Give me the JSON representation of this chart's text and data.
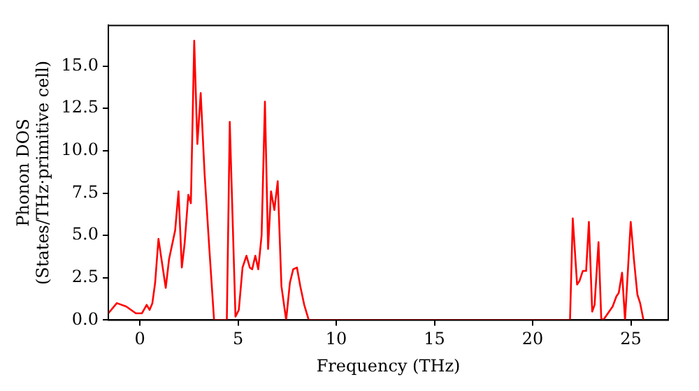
{
  "chart_data": {
    "type": "line",
    "xlabel": "Frequency (THz)",
    "ylabel": "Phonon DOS\n(States/THz·primitive cell)",
    "x": [
      -1.6,
      -1.17,
      -0.69,
      -0.2,
      0.11,
      0.35,
      0.5,
      0.64,
      0.78,
      0.95,
      1.32,
      1.49,
      1.8,
      1.97,
      2.14,
      2.28,
      2.47,
      2.6,
      2.77,
      2.93,
      3.1,
      3.3,
      3.54,
      3.78,
      4.43,
      4.58,
      4.87,
      5.04,
      5.23,
      5.43,
      5.6,
      5.72,
      5.88,
      6.03,
      6.2,
      6.37,
      6.53,
      6.68,
      6.85,
      7.02,
      7.21,
      7.45,
      7.64,
      7.81,
      8.0,
      8.17,
      8.37,
      8.6,
      21.9,
      22.04,
      22.26,
      22.38,
      22.55,
      22.72,
      22.86,
      23.03,
      23.15,
      23.35,
      23.49,
      23.59,
      23.83,
      24.07,
      24.26,
      24.38,
      24.55,
      24.7,
      24.99,
      25.16,
      25.33,
      25.47,
      25.64
    ],
    "series": [
      {
        "color": "#ff0000",
        "values": [
          0.4,
          1.0,
          0.8,
          0.4,
          0.4,
          0.9,
          0.6,
          1.0,
          2.2,
          4.8,
          1.9,
          3.6,
          5.3,
          7.6,
          3.1,
          4.5,
          7.4,
          6.9,
          16.5,
          10.4,
          13.4,
          8.6,
          4.2,
          0,
          0,
          11.7,
          0.2,
          0.6,
          3.1,
          3.8,
          3.1,
          3.0,
          3.8,
          3.0,
          5.0,
          12.9,
          4.2,
          7.6,
          6.5,
          8.2,
          2.0,
          0,
          2.2,
          3.0,
          3.1,
          2.0,
          0.9,
          0,
          0,
          6.0,
          2.1,
          2.3,
          2.9,
          2.9,
          5.8,
          0.5,
          0.9,
          4.6,
          0.1,
          0,
          0.4,
          0.8,
          1.4,
          1.6,
          2.8,
          0,
          5.8,
          3.5,
          1.5,
          1.0,
          0
        ]
      }
    ],
    "xlim": [
      -1.6,
      26.9
    ],
    "ylim": [
      0,
      17.4
    ],
    "xticks": [
      0,
      5,
      10,
      15,
      20,
      25
    ],
    "yticks": [
      {
        "value": 0,
        "label": "0.0"
      },
      {
        "value": 2.5,
        "label": "2.5"
      },
      {
        "value": 5,
        "label": "5.0"
      },
      {
        "value": 7.5,
        "label": "7.5"
      },
      {
        "value": 10,
        "label": "10.0"
      },
      {
        "value": 12.5,
        "label": "12.5"
      },
      {
        "value": 15,
        "label": "15.0"
      }
    ],
    "grid": false,
    "legend": false,
    "marker": "none",
    "line_style": "solid"
  }
}
